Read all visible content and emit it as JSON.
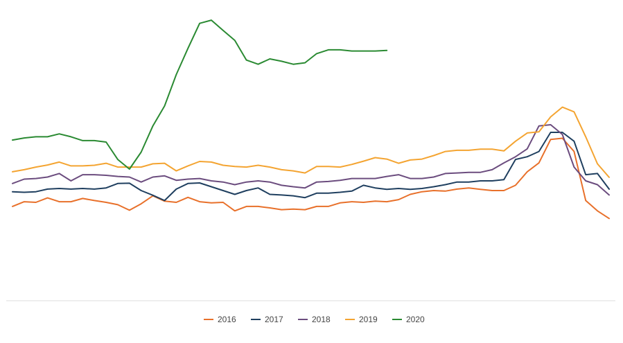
{
  "chart_data": {
    "type": "line",
    "title": "",
    "xlabel": "",
    "ylabel": "",
    "grid": false,
    "legend_position": "bottom-center",
    "point_count": 52,
    "ylim": [
      0,
      100
    ],
    "series": [
      {
        "name": "2016",
        "color": "#e8702a",
        "values": [
          32.1,
          33.7,
          33.5,
          35.0,
          33.7,
          33.7,
          34.8,
          34.1,
          33.5,
          32.7,
          30.8,
          33.0,
          35.7,
          33.9,
          33.5,
          35.2,
          33.7,
          33.3,
          33.5,
          30.6,
          32.1,
          32.1,
          31.6,
          31.0,
          31.2,
          31.0,
          32.1,
          32.1,
          33.3,
          33.7,
          33.5,
          33.9,
          33.7,
          34.4,
          36.2,
          37.1,
          37.5,
          37.3,
          38.0,
          38.4,
          37.9,
          37.5,
          37.5,
          39.3,
          43.9,
          46.9,
          54.9,
          55.3,
          50.8,
          34.1,
          30.6,
          28.0
        ]
      },
      {
        "name": "2017",
        "color": "#1f3f5f",
        "values": [
          37.1,
          36.9,
          37.1,
          38.0,
          38.2,
          38.0,
          38.2,
          38.0,
          38.4,
          39.9,
          40.0,
          37.5,
          35.9,
          34.1,
          38.0,
          39.9,
          40.1,
          38.8,
          37.5,
          36.2,
          37.5,
          38.4,
          36.2,
          36.0,
          35.7,
          35.1,
          36.6,
          36.6,
          36.9,
          37.3,
          39.3,
          38.4,
          37.9,
          38.2,
          37.9,
          38.2,
          38.8,
          39.5,
          40.4,
          40.4,
          40.8,
          40.8,
          41.2,
          48.1,
          49.0,
          50.8,
          57.3,
          57.3,
          54.3,
          42.9,
          43.3,
          38.0
        ]
      },
      {
        "name": "2018",
        "color": "#6b4c7e",
        "values": [
          39.9,
          41.4,
          41.6,
          42.1,
          43.3,
          40.8,
          42.9,
          42.9,
          42.7,
          42.3,
          42.1,
          40.4,
          42.1,
          42.5,
          41.0,
          41.4,
          41.6,
          40.8,
          40.4,
          39.5,
          40.4,
          40.8,
          40.4,
          39.3,
          38.8,
          38.4,
          40.4,
          40.6,
          41.0,
          41.6,
          41.6,
          41.6,
          42.3,
          42.9,
          41.6,
          41.6,
          42.1,
          43.3,
          43.5,
          43.7,
          43.7,
          44.6,
          46.9,
          49.0,
          51.7,
          59.5,
          59.9,
          56.6,
          45.5,
          40.8,
          39.5,
          36.0
        ]
      },
      {
        "name": "2019",
        "color": "#f4a431",
        "values": [
          43.9,
          44.6,
          45.5,
          46.2,
          47.2,
          45.9,
          45.9,
          46.1,
          46.8,
          45.5,
          45.5,
          45.5,
          46.6,
          46.8,
          44.2,
          45.9,
          47.4,
          47.2,
          46.1,
          45.7,
          45.5,
          46.1,
          45.5,
          44.6,
          44.2,
          43.5,
          45.7,
          45.7,
          45.5,
          46.4,
          47.5,
          48.7,
          48.2,
          46.8,
          47.9,
          48.2,
          49.4,
          50.8,
          51.2,
          51.2,
          51.6,
          51.6,
          51.0,
          54.3,
          57.1,
          57.5,
          62.6,
          65.9,
          64.3,
          55.8,
          46.6,
          42.0
        ]
      },
      {
        "name": "2020",
        "color": "#2a8a32",
        "values": [
          54.7,
          55.4,
          55.8,
          55.8,
          56.8,
          55.8,
          54.5,
          54.5,
          54.0,
          48.1,
          44.8,
          50.6,
          59.5,
          66.3,
          77.0,
          85.9,
          94.4,
          95.5,
          92.0,
          88.6,
          81.9,
          80.5,
          82.3,
          81.5,
          80.5,
          81.0,
          84.1,
          85.4,
          85.4,
          85.0,
          85.0,
          85.0,
          85.2
        ]
      }
    ]
  }
}
